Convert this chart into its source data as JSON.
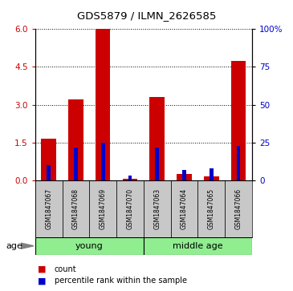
{
  "title": "GDS5879 / ILMN_2626585",
  "samples": [
    "GSM1847067",
    "GSM1847068",
    "GSM1847069",
    "GSM1847070",
    "GSM1847063",
    "GSM1847064",
    "GSM1847065",
    "GSM1847066"
  ],
  "count_values": [
    1.65,
    3.2,
    6.0,
    0.05,
    3.3,
    0.25,
    0.15,
    4.75
  ],
  "percentile_values": [
    10,
    22,
    25,
    3,
    22,
    7,
    8,
    23
  ],
  "ylim_left": [
    0,
    6
  ],
  "ylim_right": [
    0,
    100
  ],
  "yticks_left": [
    0,
    1.5,
    3,
    4.5,
    6
  ],
  "yticks_right": [
    0,
    25,
    50,
    75,
    100
  ],
  "ytick_labels_right": [
    "0",
    "25",
    "50",
    "75",
    "100%"
  ],
  "groups": [
    {
      "label": "young",
      "start": 0,
      "end": 4,
      "color": "#90EE90"
    },
    {
      "label": "middle age",
      "start": 4,
      "end": 8,
      "color": "#90EE90"
    }
  ],
  "count_color": "#CC0000",
  "percentile_color": "#0000CC",
  "age_label": "age",
  "legend_count": "count",
  "legend_percentile": "percentile rank within the sample",
  "bg_color": "#FFFFFF",
  "plot_bg_color": "#FFFFFF",
  "label_box_color": "#C8C8C8",
  "grid_color": "#000000"
}
